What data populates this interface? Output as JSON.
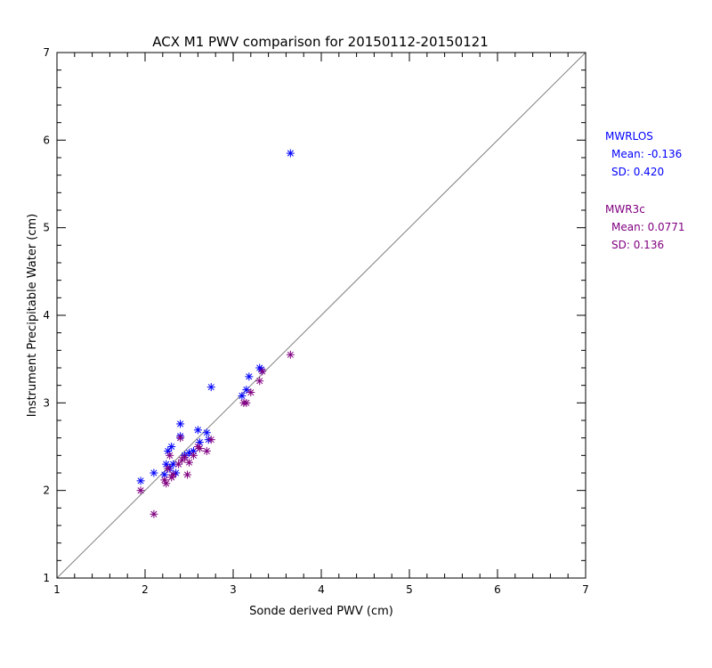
{
  "chart_data": {
    "type": "scatter",
    "title": "ACX M1 PWV comparison for 20150112-20150121",
    "xlabel": "Sonde derived PWV (cm)",
    "ylabel": "Instrument Precipitable Water (cm)",
    "xlim": [
      1,
      7
    ],
    "ylim": [
      1,
      7
    ],
    "xticks": [
      1,
      2,
      3,
      4,
      5,
      6,
      7
    ],
    "yticks": [
      1,
      2,
      3,
      4,
      5,
      6,
      7
    ],
    "grid": false,
    "legend_placement": "right",
    "reference_line": {
      "x": [
        1,
        7
      ],
      "y": [
        1,
        7
      ],
      "color": "#808080"
    },
    "series": [
      {
        "name": "MWRLOS",
        "color": "#0000ff",
        "marker": "asterisk",
        "stats": [
          {
            "label": "Mean:",
            "value": "-0.136"
          },
          {
            "label": "SD:",
            "value": "0.420"
          }
        ],
        "points": [
          [
            1.95,
            2.11
          ],
          [
            2.1,
            2.2
          ],
          [
            2.22,
            2.18
          ],
          [
            2.24,
            2.3
          ],
          [
            2.26,
            2.45
          ],
          [
            2.28,
            2.25
          ],
          [
            2.3,
            2.5
          ],
          [
            2.32,
            2.3
          ],
          [
            2.35,
            2.2
          ],
          [
            2.4,
            2.76
          ],
          [
            2.4,
            2.62
          ],
          [
            2.45,
            2.4
          ],
          [
            2.5,
            2.43
          ],
          [
            2.55,
            2.45
          ],
          [
            2.6,
            2.69
          ],
          [
            2.62,
            2.55
          ],
          [
            2.7,
            2.66
          ],
          [
            2.72,
            2.58
          ],
          [
            2.75,
            3.18
          ],
          [
            3.1,
            3.08
          ],
          [
            3.15,
            3.15
          ],
          [
            3.18,
            3.3
          ],
          [
            3.3,
            3.4
          ],
          [
            3.32,
            3.38
          ],
          [
            3.65,
            5.85
          ]
        ]
      },
      {
        "name": "MWR3c",
        "color": "#800080",
        "marker": "asterisk",
        "stats": [
          {
            "label": "Mean:",
            "value": "0.0771"
          },
          {
            "label": "SD:",
            "value": "0.136"
          }
        ],
        "points": [
          [
            1.95,
            2.0
          ],
          [
            2.1,
            1.73
          ],
          [
            2.22,
            2.12
          ],
          [
            2.24,
            2.08
          ],
          [
            2.26,
            2.25
          ],
          [
            2.28,
            2.4
          ],
          [
            2.3,
            2.15
          ],
          [
            2.32,
            2.18
          ],
          [
            2.38,
            2.3
          ],
          [
            2.4,
            2.6
          ],
          [
            2.42,
            2.35
          ],
          [
            2.45,
            2.38
          ],
          [
            2.48,
            2.18
          ],
          [
            2.5,
            2.32
          ],
          [
            2.55,
            2.4
          ],
          [
            2.6,
            2.5
          ],
          [
            2.62,
            2.48
          ],
          [
            2.7,
            2.45
          ],
          [
            2.75,
            2.58
          ],
          [
            3.12,
            3.0
          ],
          [
            3.15,
            3.0
          ],
          [
            3.2,
            3.12
          ],
          [
            3.3,
            3.25
          ],
          [
            3.33,
            3.36
          ],
          [
            3.65,
            3.55
          ]
        ]
      }
    ]
  }
}
